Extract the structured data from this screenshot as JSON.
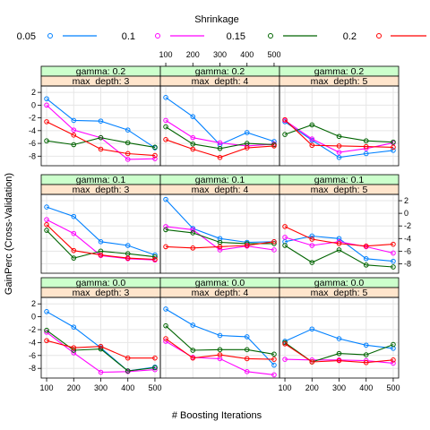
{
  "chart_data": {
    "type": "line",
    "layout": "trellis 3x3",
    "xlabel": "# Boosting Iterations",
    "ylabel": "GainPerc (Cross-Validation)",
    "x": [
      100,
      200,
      300,
      400,
      500
    ],
    "xticks": [
      "100",
      "200",
      "300",
      "400",
      "500"
    ],
    "xlim": [
      80,
      520
    ],
    "ylim": [
      -9.5,
      3
    ],
    "yticks": [
      "2",
      "0",
      "-2",
      "-4",
      "-6",
      "-8"
    ],
    "grid": true,
    "legend": {
      "title": "Shrinkage",
      "position": "top",
      "entries": [
        "0.05",
        "0.1",
        "0.15",
        "0.2"
      ]
    },
    "series_colors": {
      "0.05": "#0080ff",
      "0.1": "#ff00ff",
      "0.15": "#006400",
      "0.2": "#ff0000"
    },
    "strip_colors": {
      "gamma": "#ccffcc",
      "depth": "#ffe5cc"
    },
    "panels": [
      {
        "gamma": "gamma: 0.2",
        "depth": "max_depth: 3",
        "series": [
          {
            "name": "0.05",
            "values": [
              1.0,
              -2.4,
              -2.5,
              -3.9,
              -6.7
            ]
          },
          {
            "name": "0.1",
            "values": [
              0.0,
              -3.9,
              -5.1,
              -8.5,
              -8.4
            ]
          },
          {
            "name": "0.15",
            "values": [
              -5.6,
              -6.2,
              -5.1,
              -5.9,
              -6.6
            ]
          },
          {
            "name": "0.2",
            "values": [
              -2.6,
              -4.7,
              -6.9,
              -7.6,
              -7.9
            ]
          }
        ]
      },
      {
        "gamma": "gamma: 0.2",
        "depth": "max_depth: 4",
        "series": [
          {
            "name": "0.05",
            "values": [
              1.2,
              -1.8,
              -6.2,
              -4.3,
              -5.7
            ]
          },
          {
            "name": "0.1",
            "values": [
              -2.4,
              -5.1,
              -5.9,
              -6.4,
              -6.1
            ]
          },
          {
            "name": "0.15",
            "values": [
              -3.4,
              -6.1,
              -6.8,
              -6.0,
              -6.2
            ]
          },
          {
            "name": "0.2",
            "values": [
              -5.4,
              -6.9,
              -8.2,
              -6.7,
              -6.4
            ]
          }
        ]
      },
      {
        "gamma": "gamma: 0.2",
        "depth": "max_depth: 5",
        "series": [
          {
            "name": "0.05",
            "values": [
              -2.6,
              -5.5,
              -8.2,
              -7.6,
              -7.1
            ]
          },
          {
            "name": "0.1",
            "values": [
              -2.4,
              -5.3,
              -7.4,
              -6.8,
              -5.9
            ]
          },
          {
            "name": "0.15",
            "values": [
              -4.6,
              -3.1,
              -4.9,
              -5.6,
              -5.8
            ]
          },
          {
            "name": "0.2",
            "values": [
              -2.3,
              -6.3,
              -6.4,
              -6.5,
              -6.6
            ]
          }
        ]
      },
      {
        "gamma": "gamma: 0.1",
        "depth": "max_depth: 3",
        "series": [
          {
            "name": "0.05",
            "values": [
              1.0,
              -0.5,
              -4.5,
              -5.1,
              -6.6
            ]
          },
          {
            "name": "0.1",
            "values": [
              -1.0,
              -3.2,
              -6.7,
              -7.2,
              -7.4
            ]
          },
          {
            "name": "0.15",
            "values": [
              -2.7,
              -7.1,
              -6.0,
              -6.4,
              -6.9
            ]
          },
          {
            "name": "0.2",
            "values": [
              -1.8,
              -5.9,
              -6.6,
              -7.1,
              -7.3
            ]
          }
        ]
      },
      {
        "gamma": "gamma: 0.1",
        "depth": "max_depth: 4",
        "series": [
          {
            "name": "0.05",
            "values": [
              2.2,
              -2.4,
              -4.0,
              -4.6,
              -4.5
            ]
          },
          {
            "name": "0.1",
            "values": [
              -2.1,
              -2.6,
              -5.8,
              -5.2,
              -5.8
            ]
          },
          {
            "name": "0.15",
            "values": [
              -2.6,
              -3.1,
              -4.6,
              -4.8,
              -4.8
            ]
          },
          {
            "name": "0.2",
            "values": [
              -5.3,
              -5.5,
              -5.3,
              -5.1,
              -4.5
            ]
          }
        ]
      },
      {
        "gamma": "gamma: 0.1",
        "depth": "max_depth: 5",
        "series": [
          {
            "name": "0.05",
            "values": [
              -4.5,
              -3.6,
              -4.0,
              -7.2,
              -7.6
            ]
          },
          {
            "name": "0.1",
            "values": [
              -3.8,
              -5.1,
              -4.5,
              -5.3,
              -6.3
            ]
          },
          {
            "name": "0.15",
            "values": [
              -5.1,
              -7.8,
              -5.8,
              -8.2,
              -8.5
            ]
          },
          {
            "name": "0.2",
            "values": [
              -2.1,
              -4.1,
              -4.8,
              -5.2,
              -4.9
            ]
          }
        ]
      },
      {
        "gamma": "gamma: 0.0",
        "depth": "max_depth: 3",
        "series": [
          {
            "name": "0.05",
            "values": [
              0.8,
              -1.6,
              -4.8,
              -8.4,
              -7.8
            ]
          },
          {
            "name": "0.1",
            "values": [
              -2.4,
              -5.6,
              -8.6,
              -8.5,
              -8.2
            ]
          },
          {
            "name": "0.15",
            "values": [
              -2.1,
              -5.2,
              -5.0,
              -8.4,
              -7.9
            ]
          },
          {
            "name": "0.2",
            "values": [
              -3.7,
              -4.8,
              -4.6,
              -6.4,
              -6.4
            ]
          }
        ]
      },
      {
        "gamma": "gamma: 0.0",
        "depth": "max_depth: 4",
        "series": [
          {
            "name": "0.05",
            "values": [
              1.2,
              -1.3,
              -2.9,
              -3.1,
              -7.5
            ]
          },
          {
            "name": "0.1",
            "values": [
              -3.8,
              -6.3,
              -6.5,
              -8.5,
              -9.0
            ]
          },
          {
            "name": "0.15",
            "values": [
              -1.4,
              -5.2,
              -5.1,
              -5.1,
              -5.8
            ]
          },
          {
            "name": "0.2",
            "values": [
              -3.4,
              -6.4,
              -5.9,
              -6.5,
              -6.6
            ]
          }
        ]
      },
      {
        "gamma": "gamma: 0.0",
        "depth": "max_depth: 5",
        "series": [
          {
            "name": "0.05",
            "values": [
              -3.8,
              -1.9,
              -3.4,
              -4.4,
              -4.9
            ]
          },
          {
            "name": "0.1",
            "values": [
              -6.6,
              -6.7,
              -6.7,
              -6.8,
              -7.2
            ]
          },
          {
            "name": "0.15",
            "values": [
              -4.0,
              -7.0,
              -5.7,
              -5.9,
              -4.3
            ]
          },
          {
            "name": "0.2",
            "values": [
              -4.2,
              -7.0,
              -6.8,
              -7.1,
              -6.7
            ]
          }
        ]
      }
    ]
  }
}
